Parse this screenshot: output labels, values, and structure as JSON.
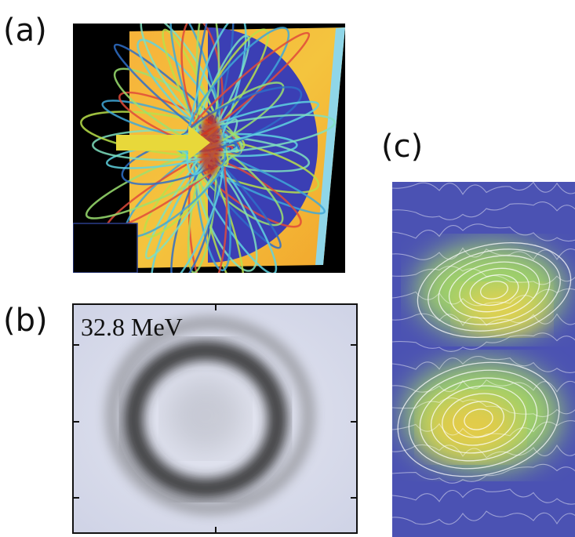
{
  "panels": [
    {
      "label": "(a)"
    },
    {
      "label": "(b)",
      "annotation": "32.8 MeV"
    },
    {
      "label": "(c)"
    }
  ]
}
